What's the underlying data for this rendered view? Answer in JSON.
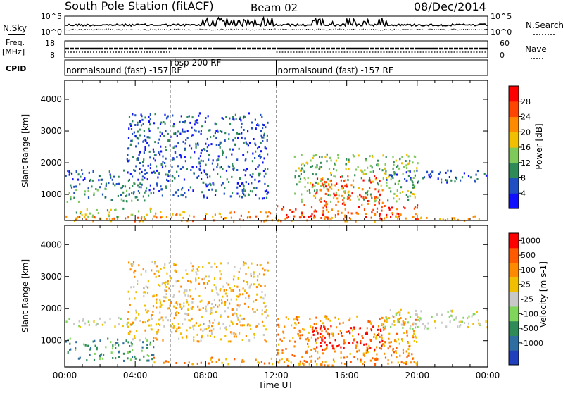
{
  "header": {
    "station": "South Pole Station (fitACF)",
    "beam": "Beam 02",
    "date": "08/Dec/2014"
  },
  "side_labels": {
    "nsky": "N.Sky",
    "freq_top": "Freq.",
    "freq_bottom": "[MHz]",
    "cpid": "CPID",
    "nsearch": "N.Search",
    "nave": "Nave"
  },
  "top_axes": {
    "noise_ticks_left": [
      "10^5",
      "10^0"
    ],
    "noise_ticks_right": [
      "10^5",
      "10^0"
    ],
    "freq_ticks": [
      "18",
      "8"
    ],
    "nave_ticks": [
      "60",
      "0"
    ]
  },
  "cpid_segments": [
    {
      "label": "normalsound (fast) -157 RF",
      "start_hour": 0,
      "end_hour": 6
    },
    {
      "label": "rbsp 200 RF",
      "start_hour": 6,
      "end_hour": 12
    },
    {
      "label": "normalsound (fast) -157 RF",
      "start_hour": 12,
      "end_hour": 24
    }
  ],
  "panels": {
    "power": {
      "ylabel": "Slant Range [km]",
      "cbar_label": "Power [dB]"
    },
    "velocity": {
      "ylabel": "Slant Range [km]",
      "cbar_label": "Velocity [m s-1]"
    }
  },
  "x_axis": {
    "label": "Time UT",
    "ticks": [
      "00:00",
      "04:00",
      "08:00",
      "12:00",
      "16:00",
      "20:00",
      "00:00"
    ]
  },
  "chart_data": [
    {
      "type": "heatmap",
      "title": "South Pole Station (fitACF) Beam 02 08/Dec/2014",
      "quantity": "Power",
      "ylabel": "Slant Range [km]",
      "xlabel": "Time UT",
      "xlim_hours": [
        0,
        24
      ],
      "ylim_km": [
        180,
        4600
      ],
      "y_ticks": [
        1000,
        2000,
        3000,
        4000
      ],
      "colorbar": {
        "label": "Power [dB]",
        "ticks": [
          "4",
          "8",
          "12",
          "16",
          "20",
          "24",
          "28"
        ],
        "colors": [
          "#1010ff",
          "#1f4fc0",
          "#2e8b57",
          "#7fc85a",
          "#f0c000",
          "#ff8a00",
          "#ff4500",
          "#ff0000"
        ]
      },
      "regions": [
        {
          "t0": 0.0,
          "t1": 24.0,
          "r0": 180,
          "r1": 350,
          "level": 5
        },
        {
          "t0": 0.5,
          "t1": 5.0,
          "r0": 300,
          "r1": 600,
          "level": 3
        },
        {
          "t0": 5.0,
          "t1": 12.0,
          "r0": 300,
          "r1": 500,
          "level": 5
        },
        {
          "t0": 12.0,
          "t1": 20.0,
          "r0": 250,
          "r1": 700,
          "level": 6
        },
        {
          "t0": 0.0,
          "t1": 5.5,
          "r0": 1450,
          "r1": 1800,
          "level": 1
        },
        {
          "t0": 3.5,
          "t1": 11.5,
          "r0": 900,
          "r1": 3600,
          "level": 1
        },
        {
          "t0": 13.0,
          "t1": 20.0,
          "r0": 800,
          "r1": 2300,
          "level": 3
        },
        {
          "t0": 14.0,
          "t1": 18.0,
          "r0": 700,
          "r1": 1600,
          "level": 6
        },
        {
          "t0": 18.0,
          "t1": 24.0,
          "r0": 1400,
          "r1": 1800,
          "level": 1
        },
        {
          "t0": 0.0,
          "t1": 4.5,
          "r0": 800,
          "r1": 1400,
          "level": 2
        }
      ]
    },
    {
      "type": "heatmap",
      "quantity": "Velocity",
      "ylabel": "Slant Range [km]",
      "xlabel": "Time UT",
      "xlim_hours": [
        0,
        24
      ],
      "ylim_km": [
        180,
        4600
      ],
      "y_ticks": [
        1000,
        2000,
        3000,
        4000
      ],
      "colorbar": {
        "label": "Velocity [m s-1]",
        "ticks": [
          "1000",
          "500",
          "100",
          "25",
          "-25",
          "-100",
          "-500",
          "-1000"
        ],
        "colors": [
          "#1f3fbf",
          "#2e6ea0",
          "#2e8b57",
          "#7fd65a",
          "#c8c8c8",
          "#f0c000",
          "#ff8a00",
          "#ff5a00",
          "#ff0000"
        ]
      },
      "regions": [
        {
          "t0": 5.0,
          "t1": 12.0,
          "r0": 300,
          "r1": 500,
          "level": 6
        },
        {
          "t0": 0.0,
          "t1": 5.0,
          "r0": 400,
          "r1": 1100,
          "level": 2
        },
        {
          "t0": 12.0,
          "t1": 20.0,
          "r0": 250,
          "r1": 1800,
          "level": 6
        },
        {
          "t0": 14.0,
          "t1": 18.0,
          "r0": 700,
          "r1": 1500,
          "level": 8
        },
        {
          "t0": 0.0,
          "t1": 4.0,
          "r0": 1450,
          "r1": 1750,
          "level": 4
        },
        {
          "t0": 18.0,
          "t1": 24.0,
          "r0": 1400,
          "r1": 2000,
          "level": 4
        },
        {
          "t0": 3.5,
          "t1": 11.5,
          "r0": 1000,
          "r1": 3500,
          "level": 5
        }
      ]
    }
  ]
}
